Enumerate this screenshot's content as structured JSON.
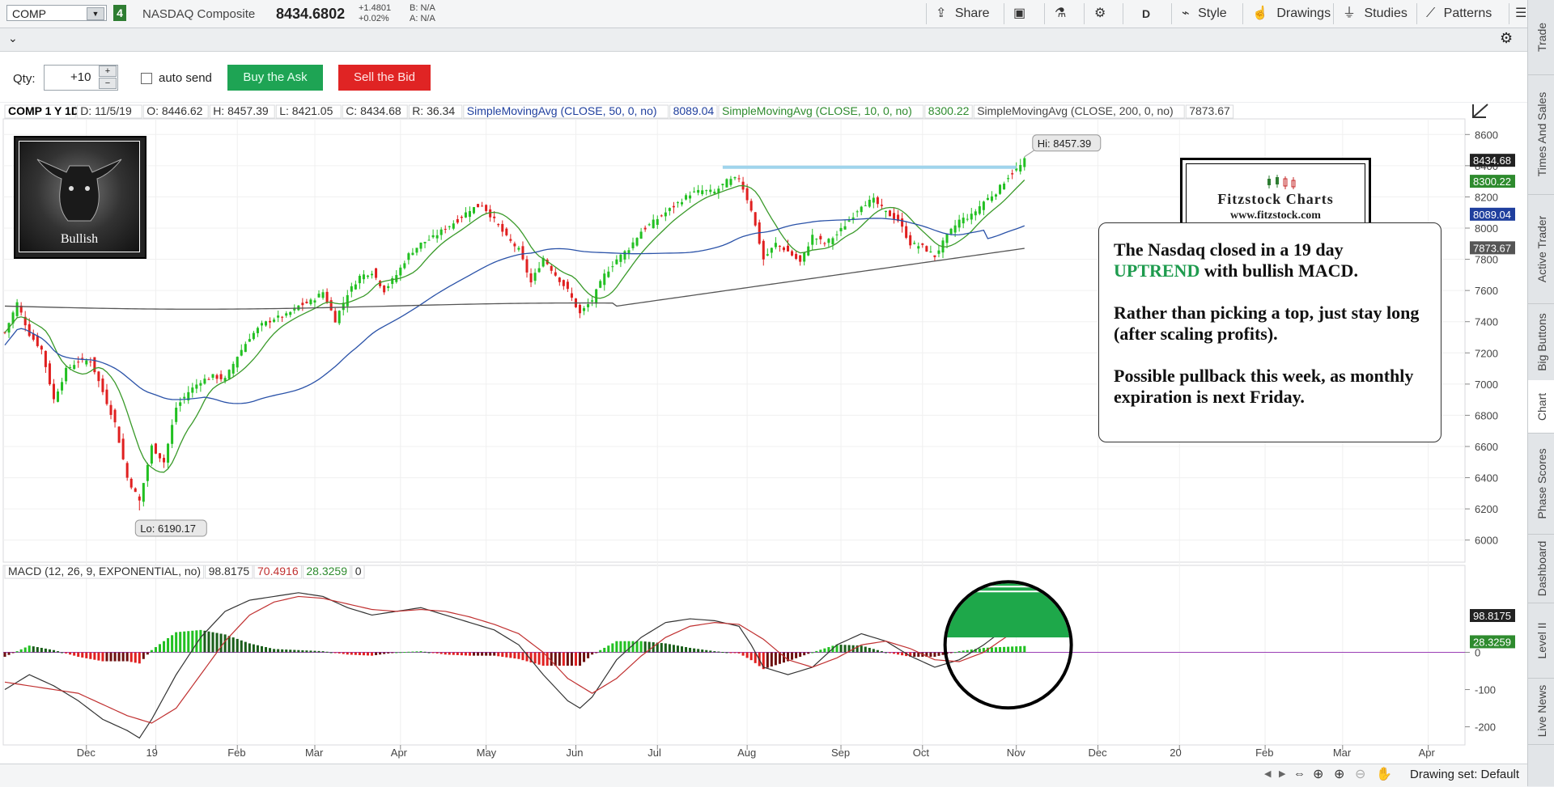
{
  "header": {
    "symbol": "COMP",
    "link_number": "4",
    "company": "NASDAQ Composite",
    "last_price": "8434.6802",
    "change": "+1.4801",
    "change_pct": "+0.02%",
    "bid": "B: N/A",
    "ask": "A: N/A",
    "share_label": "Share",
    "period_label": "D",
    "style_label": "Style",
    "drawings_label": "Drawings",
    "studies_label": "Studies",
    "patterns_label": "Patterns"
  },
  "order": {
    "qty_label": "Qty:",
    "qty_value": "+10",
    "auto_send_label": "auto send",
    "buy_label": "Buy the Ask",
    "sell_label": "Sell the Bid"
  },
  "right_tabs": [
    "Trade",
    "Times And Sales",
    "Active Trader",
    "Big Buttons",
    "Chart",
    "Phase Scores",
    "Dashboard",
    "Level II",
    "Live News"
  ],
  "legend": {
    "title": "COMP 1 Y 1D",
    "date": "D: 11/5/19",
    "open": "O: 8446.62",
    "high": "H: 8457.39",
    "low": "L: 8421.05",
    "close": "C: 8434.68",
    "range": "R: 36.34",
    "sma50_label": "SimpleMovingAvg (CLOSE, 50, 0, no)",
    "sma50_value": "8089.04",
    "sma10_label": "SimpleMovingAvg (CLOSE, 10, 0, no)",
    "sma10_value": "8300.22",
    "sma200_label": "SimpleMovingAvg (CLOSE, 200, 0, no)",
    "sma200_value": "7873.67"
  },
  "macd_legend": {
    "label": "MACD (12, 26, 9, EXPONENTIAL, no)",
    "value": "98.8175",
    "avg": "70.4916",
    "diff": "28.3259",
    "zero": "0"
  },
  "bottom": {
    "drawing_set": "Drawing set: Default"
  },
  "logo": {
    "caption": "Bullish"
  },
  "watermark": {
    "title": "Fitzstock Charts",
    "url": "www.fitzstock.com"
  },
  "note": {
    "line1_pre": "The Nasdaq closed in a 19 day",
    "line1_trend": "UPTREND",
    "line1_post": " with bullish MACD.",
    "para2": "Rather than picking a top, just stay long (after scaling profits).",
    "para3": "Possible pullback this week, as monthly expiration is next Friday."
  },
  "colors": {
    "up": "#22c022",
    "down": "#e02020",
    "sma10": "#3a9a2a",
    "sma50": "#2a52a8",
    "sma200": "#555555",
    "macd": "#333333",
    "signal": "#c03030",
    "resistance": "#9fd4ec",
    "highlight": "#1ea84a"
  },
  "chart_data": {
    "type": "candlestick",
    "price_ylim": [
      5900,
      8700
    ],
    "price_ticks": [
      "8600",
      "8400",
      "8200",
      "8000",
      "7800",
      "7600",
      "7400",
      "7200",
      "7000",
      "6800",
      "6600",
      "6400",
      "6200",
      "6000"
    ],
    "price_labels": [
      {
        "value": 8434.68,
        "text": "8434.68",
        "color": "#222222"
      },
      {
        "value": 8300.22,
        "text": "8300.22",
        "color": "#2e8b2e"
      },
      {
        "value": 8089.04,
        "text": "8089.04",
        "color": "#1f3f9e"
      },
      {
        "value": 7873.67,
        "text": "7873.67",
        "color": "#555555"
      }
    ],
    "macd_ylim": [
      -240,
      190
    ],
    "macd_ticks": [
      "0",
      "-100",
      "-200"
    ],
    "macd_labels": [
      {
        "value": 98.8175,
        "text": "98.8175",
        "color": "#222222"
      },
      {
        "value": 28.3259,
        "text": "28.3259",
        "color": "#2e8b2e"
      }
    ],
    "x_labels": [
      {
        "day": 20,
        "text": "Dec"
      },
      {
        "day": 37,
        "text": "19"
      },
      {
        "day": 57,
        "text": "Feb"
      },
      {
        "day": 76,
        "text": "Mar"
      },
      {
        "day": 97,
        "text": "Apr"
      },
      {
        "day": 118,
        "text": "May"
      },
      {
        "day": 140,
        "text": "Jun"
      },
      {
        "day": 160,
        "text": "Jul"
      },
      {
        "day": 182,
        "text": "Aug"
      },
      {
        "day": 205,
        "text": "Sep"
      },
      {
        "day": 225,
        "text": "Oct"
      },
      {
        "day": 248,
        "text": "Nov"
      },
      {
        "day": 268,
        "text": "Dec"
      },
      {
        "day": 288,
        "text": "20"
      },
      {
        "day": 309,
        "text": "Feb"
      },
      {
        "day": 328,
        "text": "Mar"
      },
      {
        "day": 349,
        "text": "Apr"
      }
    ],
    "x_range": [
      0,
      358
    ],
    "hi": {
      "day": 250,
      "value": 8457.39,
      "text": "Hi: 8457.39"
    },
    "lo": {
      "day": 33,
      "value": 6190.17,
      "text": "Lo: 6190.17"
    },
    "resistance": {
      "from_day": 176,
      "to_day": 248,
      "value": 8390
    },
    "closes_anchor": [
      [
        0,
        7330
      ],
      [
        3,
        7520
      ],
      [
        6,
        7320
      ],
      [
        9,
        7220
      ],
      [
        12,
        6900
      ],
      [
        15,
        7090
      ],
      [
        18,
        7150
      ],
      [
        21,
        7150
      ],
      [
        24,
        6950
      ],
      [
        27,
        6750
      ],
      [
        30,
        6400
      ],
      [
        33,
        6250
      ],
      [
        36,
        6600
      ],
      [
        39,
        6500
      ],
      [
        42,
        6850
      ],
      [
        45,
        6950
      ],
      [
        48,
        7020
      ],
      [
        51,
        7050
      ],
      [
        54,
        7030
      ],
      [
        57,
        7180
      ],
      [
        60,
        7300
      ],
      [
        63,
        7380
      ],
      [
        66,
        7420
      ],
      [
        69,
        7440
      ],
      [
        72,
        7500
      ],
      [
        75,
        7530
      ],
      [
        78,
        7590
      ],
      [
        81,
        7410
      ],
      [
        84,
        7580
      ],
      [
        87,
        7690
      ],
      [
        90,
        7720
      ],
      [
        93,
        7600
      ],
      [
        96,
        7700
      ],
      [
        99,
        7830
      ],
      [
        102,
        7900
      ],
      [
        105,
        7940
      ],
      [
        108,
        8000
      ],
      [
        111,
        8050
      ],
      [
        114,
        8120
      ],
      [
        117,
        8150
      ],
      [
        120,
        8050
      ],
      [
        123,
        7940
      ],
      [
        126,
        7860
      ],
      [
        129,
        7650
      ],
      [
        132,
        7810
      ],
      [
        135,
        7700
      ],
      [
        138,
        7600
      ],
      [
        141,
        7450
      ],
      [
        144,
        7540
      ],
      [
        147,
        7700
      ],
      [
        150,
        7800
      ],
      [
        153,
        7870
      ],
      [
        156,
        7980
      ],
      [
        159,
        8040
      ],
      [
        162,
        8100
      ],
      [
        165,
        8160
      ],
      [
        168,
        8220
      ],
      [
        171,
        8240
      ],
      [
        174,
        8230
      ],
      [
        177,
        8300
      ],
      [
        180,
        8320
      ],
      [
        183,
        8120
      ],
      [
        186,
        7800
      ],
      [
        189,
        7900
      ],
      [
        192,
        7850
      ],
      [
        195,
        7780
      ],
      [
        198,
        7950
      ],
      [
        201,
        7900
      ],
      [
        204,
        7960
      ],
      [
        207,
        8050
      ],
      [
        210,
        8150
      ],
      [
        213,
        8180
      ],
      [
        216,
        8100
      ],
      [
        219,
        8050
      ],
      [
        222,
        7900
      ],
      [
        225,
        7880
      ],
      [
        228,
        7820
      ],
      [
        231,
        7950
      ],
      [
        234,
        8050
      ],
      [
        237,
        8080
      ],
      [
        240,
        8170
      ],
      [
        243,
        8230
      ],
      [
        246,
        8330
      ],
      [
        249,
        8400
      ],
      [
        250,
        8434.68
      ]
    ],
    "macd_anchor": [
      [
        0,
        -100
      ],
      [
        6,
        -60
      ],
      [
        12,
        -90
      ],
      [
        18,
        -130
      ],
      [
        24,
        -180
      ],
      [
        30,
        -210
      ],
      [
        33,
        -230
      ],
      [
        36,
        -180
      ],
      [
        42,
        -60
      ],
      [
        48,
        40
      ],
      [
        54,
        110
      ],
      [
        60,
        140
      ],
      [
        66,
        150
      ],
      [
        72,
        160
      ],
      [
        78,
        150
      ],
      [
        84,
        120
      ],
      [
        90,
        100
      ],
      [
        96,
        110
      ],
      [
        102,
        120
      ],
      [
        108,
        100
      ],
      [
        114,
        80
      ],
      [
        120,
        60
      ],
      [
        126,
        20
      ],
      [
        132,
        -60
      ],
      [
        138,
        -130
      ],
      [
        141,
        -150
      ],
      [
        144,
        -120
      ],
      [
        150,
        -20
      ],
      [
        156,
        40
      ],
      [
        162,
        80
      ],
      [
        168,
        90
      ],
      [
        174,
        85
      ],
      [
        180,
        70
      ],
      [
        183,
        20
      ],
      [
        186,
        -40
      ],
      [
        192,
        -60
      ],
      [
        198,
        -40
      ],
      [
        204,
        20
      ],
      [
        210,
        50
      ],
      [
        216,
        30
      ],
      [
        222,
        -10
      ],
      [
        228,
        -40
      ],
      [
        234,
        -20
      ],
      [
        240,
        20
      ],
      [
        246,
        70
      ],
      [
        250,
        98.82
      ]
    ],
    "signal_anchor": [
      [
        0,
        -80
      ],
      [
        6,
        -90
      ],
      [
        12,
        -100
      ],
      [
        18,
        -110
      ],
      [
        24,
        -140
      ],
      [
        30,
        -170
      ],
      [
        36,
        -190
      ],
      [
        42,
        -150
      ],
      [
        48,
        -60
      ],
      [
        54,
        30
      ],
      [
        60,
        100
      ],
      [
        66,
        135
      ],
      [
        72,
        150
      ],
      [
        78,
        145
      ],
      [
        84,
        130
      ],
      [
        90,
        115
      ],
      [
        96,
        110
      ],
      [
        102,
        115
      ],
      [
        108,
        110
      ],
      [
        114,
        95
      ],
      [
        120,
        75
      ],
      [
        126,
        50
      ],
      [
        132,
        0
      ],
      [
        138,
        -70
      ],
      [
        144,
        -110
      ],
      [
        150,
        -70
      ],
      [
        156,
        -10
      ],
      [
        162,
        40
      ],
      [
        168,
        70
      ],
      [
        174,
        80
      ],
      [
        180,
        75
      ],
      [
        186,
        35
      ],
      [
        192,
        -20
      ],
      [
        198,
        -40
      ],
      [
        204,
        -15
      ],
      [
        210,
        20
      ],
      [
        216,
        30
      ],
      [
        222,
        10
      ],
      [
        228,
        -20
      ],
      [
        234,
        -25
      ],
      [
        240,
        0
      ],
      [
        246,
        45
      ],
      [
        250,
        70.49
      ]
    ]
  }
}
